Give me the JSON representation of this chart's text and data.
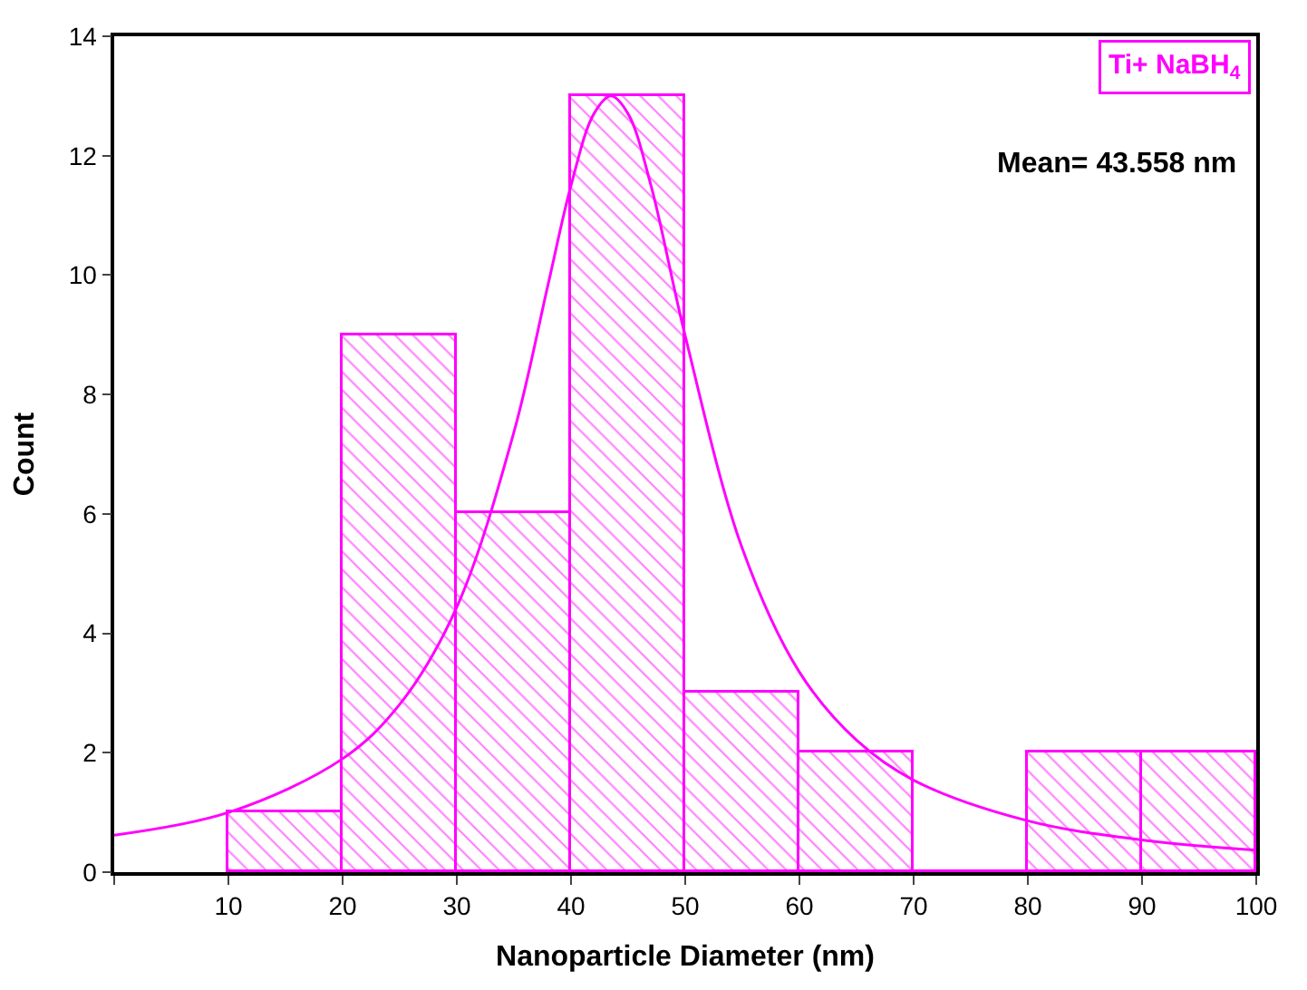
{
  "chart_data": {
    "type": "histogram",
    "xlabel": "Nanoparticle Diameter (nm)",
    "ylabel": "Count",
    "xlim": [
      0,
      100
    ],
    "xticks": [
      {
        "value": 0,
        "label": null
      },
      10,
      20,
      30,
      40,
      50,
      60,
      70,
      80,
      90,
      100
    ],
    "ylim": [
      0,
      14
    ],
    "yticks": [
      0,
      2,
      4,
      6,
      8,
      10,
      12,
      14
    ],
    "annotations": [
      "Ti+ NaBH$_{4}$",
      "Mean= 43.558 nm"
    ],
    "series": [
      {
        "color": "#ff00ff",
        "bins": [
          10,
          20,
          30,
          40,
          50,
          60,
          70,
          80,
          90,
          100
        ],
        "values": [
          1,
          9,
          6,
          13,
          3,
          2,
          0,
          2,
          2
        ]
      },
      {
        "type": "line",
        "color": "#ff00ff",
        "x": [
          0,
          10,
          20,
          25,
          30,
          35,
          38,
          40,
          42,
          43.5,
          45,
          47,
          50,
          55,
          60,
          65,
          70,
          80,
          90,
          100
        ],
        "values": [
          0.62,
          1.0,
          1.9,
          2.81,
          4.44,
          7.37,
          9.85,
          11.5,
          12.7,
          13,
          12.7,
          11.5,
          8.98,
          5.42,
          3.35,
          2.21,
          1.54,
          0.86,
          0.54,
          0.37
        ]
      }
    ]
  }
}
